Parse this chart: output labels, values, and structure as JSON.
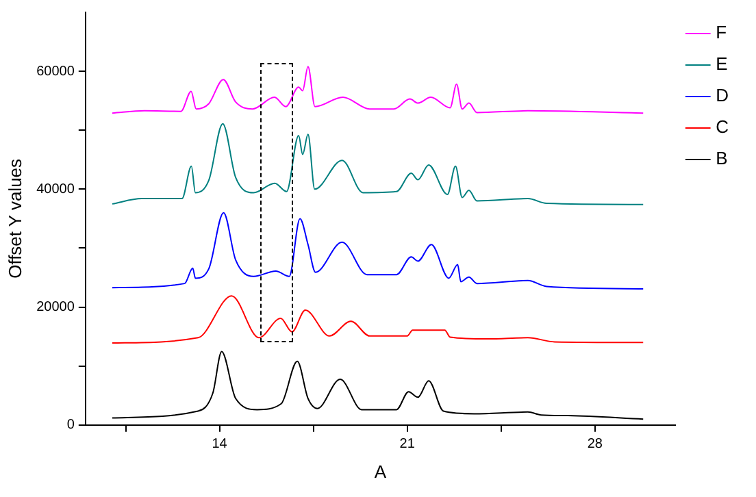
{
  "chart_data": {
    "type": "line",
    "xlabel": "A",
    "ylabel": "Offset Y values",
    "xlim": [
      9,
      31
    ],
    "ylim": [
      0,
      70000
    ],
    "xticks": [
      {
        "value": 10.5,
        "label": null
      },
      14,
      {
        "value": 17.5,
        "label": null
      },
      21,
      {
        "value": 24.5,
        "label": null
      },
      28
    ],
    "yticks": [
      0,
      {
        "value": 10000,
        "label": null
      },
      20000,
      {
        "value": 30000,
        "label": null
      },
      40000,
      {
        "value": 50000,
        "label": null
      },
      60000
    ],
    "grid": false,
    "legend": "top right",
    "marker": "none",
    "line_style": "solid",
    "series": [
      {
        "name": "B",
        "color": "#000000",
        "x": [
          10,
          13.2,
          13.75,
          14.08,
          14.6,
          15.4,
          16.3,
          16.9,
          17.3,
          17.65,
          18.5,
          19.3,
          20.6,
          21.05,
          21.4,
          21.8,
          22.35,
          23.5,
          25.5,
          26,
          27,
          29.8
        ],
        "values": [
          1200,
          2350,
          5400,
          12470,
          4500,
          2600,
          3600,
          10800,
          4500,
          2800,
          7760,
          2600,
          2600,
          5650,
          4700,
          7500,
          2350,
          1900,
          2200,
          1700,
          1600,
          1000
        ]
      },
      {
        "name": "C",
        "color": "#ff0000",
        "x": [
          10,
          13.2,
          14.45,
          15.47,
          16.28,
          16.7,
          17.2,
          18.1,
          18.9,
          19.6,
          21,
          21.2,
          22.4,
          22.6,
          24,
          25.5,
          26.5,
          29.8
        ],
        "values": [
          13900,
          14800,
          21900,
          14800,
          18100,
          15800,
          19500,
          15100,
          17600,
          15100,
          15100,
          16100,
          16100,
          14900,
          14600,
          14800,
          14100,
          14000
        ]
      },
      {
        "name": "D",
        "color": "#0000ff",
        "x": [
          10,
          12.7,
          13.0,
          13.1,
          13.6,
          14.15,
          14.6,
          15.27,
          16.1,
          16.6,
          17.0,
          17.3,
          17.58,
          18.57,
          19.5,
          20.6,
          21.15,
          21.4,
          21.9,
          22.55,
          22.88,
          23.0,
          23.3,
          23.6,
          25.5,
          26.2,
          29.8
        ],
        "values": [
          23300,
          24000,
          26600,
          24900,
          26500,
          36000,
          28000,
          25200,
          26100,
          25200,
          35000,
          30600,
          25900,
          31000,
          25500,
          25500,
          28500,
          27800,
          30600,
          24900,
          27200,
          24300,
          25100,
          24000,
          24500,
          23500,
          23100
        ]
      },
      {
        "name": "E",
        "color": "#008080",
        "x": [
          10,
          11.1,
          12.6,
          12.95,
          13.1,
          13.6,
          14.12,
          14.6,
          15.27,
          16.06,
          16.5,
          16.95,
          17.1,
          17.3,
          17.55,
          18.57,
          19.35,
          20.6,
          21.15,
          21.4,
          21.8,
          22.5,
          22.8,
          23.05,
          23.3,
          23.6,
          25.5,
          26.2,
          29.8
        ],
        "values": [
          37500,
          38400,
          38400,
          43900,
          39400,
          41500,
          51100,
          42000,
          39400,
          41000,
          39600,
          49100,
          45900,
          49300,
          40000,
          44900,
          39400,
          39600,
          42700,
          41600,
          44100,
          39100,
          43900,
          38600,
          39800,
          38000,
          38400,
          37600,
          37400
        ]
      },
      {
        "name": "F",
        "color": "#ff00ff",
        "x": [
          10,
          11.2,
          12.56,
          12.94,
          13.13,
          13.6,
          14.14,
          14.6,
          15.23,
          16.05,
          16.47,
          16.95,
          17.1,
          17.3,
          17.56,
          18.6,
          19.6,
          20.5,
          21.1,
          21.4,
          21.88,
          22.6,
          22.84,
          23.05,
          23.3,
          23.6,
          25.5,
          29.8
        ],
        "values": [
          52900,
          53300,
          53200,
          56600,
          53600,
          54500,
          58600,
          54800,
          53600,
          55600,
          54000,
          57300,
          56700,
          60800,
          54000,
          55600,
          53600,
          53600,
          55300,
          54600,
          55600,
          53800,
          57800,
          53600,
          54600,
          53000,
          53300,
          52900
        ]
      }
    ]
  }
}
